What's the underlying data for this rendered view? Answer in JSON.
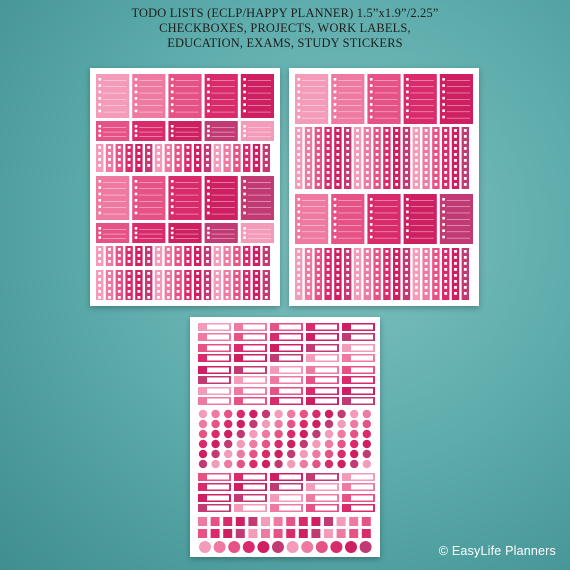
{
  "header": {
    "lines": [
      "TODO LISTS (ECLP/HAPPY PLANNER) 1.5”x1.9”/2.25”",
      "CHECKBOXES, PROJECTS, WORK LABELS,",
      "EDUCATION, EXAMS, STUDY STICKERS"
    ]
  },
  "colors": {
    "background": "#5aa9a9",
    "pink_palette": [
      "#f49bb9",
      "#ef7aa1",
      "#e65186",
      "#d92a6c",
      "#cf1f63",
      "#c23a73"
    ]
  },
  "sheets": [
    {
      "name": "sheet-1",
      "content": "todo-list-stickers"
    },
    {
      "name": "sheet-2",
      "content": "todo-list-stickers"
    },
    {
      "name": "sheet-3",
      "content": "label-and-icon-stickers"
    }
  ],
  "footer": {
    "copyright": "© EasyLife Planners"
  }
}
